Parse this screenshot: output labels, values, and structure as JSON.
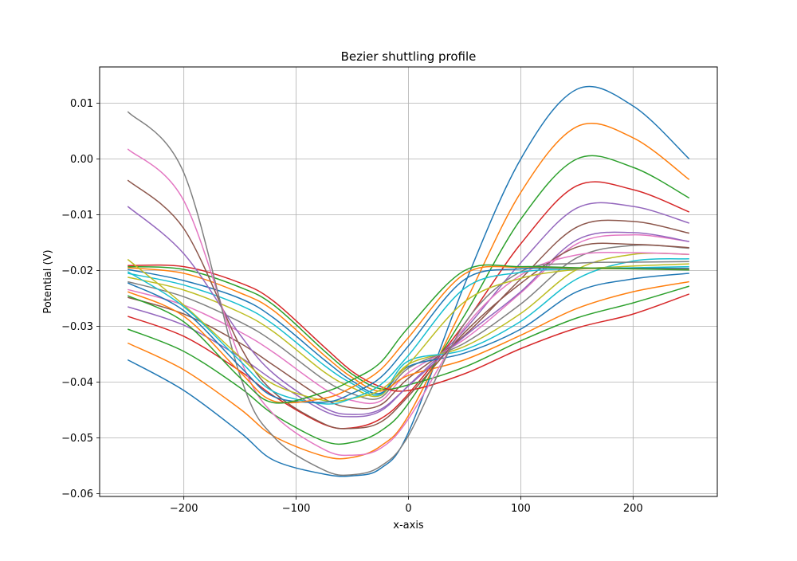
{
  "chart_data": {
    "type": "line",
    "title": "Bezier shuttling profile",
    "xlabel": "x-axis",
    "ylabel": "Potential (V)",
    "xlim": [
      -275,
      275
    ],
    "ylim": [
      -0.0605,
      0.0165
    ],
    "xticks": [
      -200,
      -100,
      0,
      100,
      200
    ],
    "xtick_labels": [
      "−200",
      "−100",
      "0",
      "100",
      "200"
    ],
    "yticks": [
      -0.06,
      -0.05,
      -0.04,
      -0.03,
      -0.02,
      -0.01,
      0.0,
      0.01
    ],
    "ytick_labels": [
      "−0.06",
      "−0.05",
      "−0.04",
      "−0.03",
      "−0.02",
      "−0.01",
      "0.00",
      "0.01"
    ],
    "grid": true,
    "legend": "none",
    "colors": [
      "#1f77b4",
      "#ff7f0e",
      "#2ca02c",
      "#d62728",
      "#9467bd",
      "#8c564b",
      "#e377c2",
      "#7f7f7f",
      "#bcbd22",
      "#17becf"
    ],
    "series": [
      {
        "x": [
          -250,
          -200,
          -150,
          -120,
          -75,
          -50,
          -25,
          0,
          50,
          100,
          150,
          200,
          250
        ],
        "y": [
          -0.036,
          -0.0415,
          -0.049,
          -0.054,
          -0.0565,
          -0.0568,
          -0.0555,
          -0.049,
          -0.0225,
          0.0,
          0.0125,
          0.0095,
          0.0
        ]
      },
      {
        "x": [
          -250,
          -200,
          -150,
          -120,
          -75,
          -50,
          -25,
          0,
          50,
          100,
          150,
          200,
          250
        ],
        "y": [
          -0.033,
          -0.0378,
          -0.0448,
          -0.0497,
          -0.0533,
          -0.0535,
          -0.0515,
          -0.046,
          -0.026,
          -0.006,
          0.0058,
          0.0038,
          -0.0037
        ]
      },
      {
        "x": [
          -250,
          -200,
          -150,
          -120,
          -75,
          -50,
          -25,
          0,
          50,
          100,
          150,
          200,
          250
        ],
        "y": [
          -0.0305,
          -0.0345,
          -0.041,
          -0.0458,
          -0.0506,
          -0.0508,
          -0.0488,
          -0.0438,
          -0.028,
          -0.0108,
          0.0,
          -0.0015,
          -0.007
        ]
      },
      {
        "x": [
          -250,
          -200,
          -150,
          -120,
          -75,
          -50,
          -25,
          0,
          50,
          100,
          150,
          200,
          250
        ],
        "y": [
          -0.0282,
          -0.0318,
          -0.038,
          -0.0425,
          -0.0476,
          -0.0482,
          -0.0466,
          -0.0421,
          -0.0295,
          -0.0152,
          -0.0048,
          -0.0055,
          -0.0095
        ]
      },
      {
        "x": [
          -250,
          -200,
          -150,
          -120,
          -75,
          -50,
          -25,
          0,
          50,
          100,
          150,
          200,
          250
        ],
        "y": [
          -0.0265,
          -0.0298,
          -0.0355,
          -0.0397,
          -0.0452,
          -0.0462,
          -0.0452,
          -0.0406,
          -0.0306,
          -0.0186,
          -0.0088,
          -0.0085,
          -0.0115
        ]
      },
      {
        "x": [
          -250,
          -200,
          -150,
          -120,
          -75,
          -50,
          -25,
          0,
          50,
          100,
          150,
          200,
          250
        ],
        "y": [
          -0.0248,
          -0.0278,
          -0.033,
          -0.037,
          -0.043,
          -0.0446,
          -0.0441,
          -0.0393,
          -0.0316,
          -0.0215,
          -0.0122,
          -0.0112,
          -0.0133
        ]
      },
      {
        "x": [
          -250,
          -200,
          -150,
          -120,
          -75,
          -50,
          -25,
          0,
          50,
          100,
          150,
          200,
          250
        ],
        "y": [
          -0.0234,
          -0.0262,
          -0.031,
          -0.0347,
          -0.0412,
          -0.0433,
          -0.0434,
          -0.0383,
          -0.0323,
          -0.024,
          -0.0152,
          -0.0136,
          -0.0148
        ]
      },
      {
        "x": [
          -250,
          -200,
          -150,
          -120,
          -75,
          -50,
          -25,
          0,
          50,
          100,
          150,
          200,
          250
        ],
        "y": [
          -0.022,
          -0.0247,
          -0.0292,
          -0.0328,
          -0.0396,
          -0.0421,
          -0.0428,
          -0.0375,
          -0.033,
          -0.026,
          -0.0177,
          -0.0155,
          -0.016
        ]
      },
      {
        "x": [
          -250,
          -200,
          -150,
          -120,
          -75,
          -50,
          -25,
          0,
          50,
          100,
          150,
          200,
          250
        ],
        "y": [
          -0.0212,
          -0.0235,
          -0.0275,
          -0.031,
          -0.0382,
          -0.041,
          -0.0424,
          -0.0368,
          -0.0336,
          -0.0277,
          -0.0198,
          -0.0171,
          -0.0171
        ]
      },
      {
        "x": [
          -250,
          -200,
          -150,
          -120,
          -75,
          -50,
          -25,
          0,
          50,
          100,
          150,
          200,
          250
        ],
        "y": [
          -0.0205,
          -0.0226,
          -0.0262,
          -0.0297,
          -0.037,
          -0.0403,
          -0.0422,
          -0.0362,
          -0.0342,
          -0.0291,
          -0.0215,
          -0.0183,
          -0.0179
        ]
      },
      {
        "x": [
          -250,
          -200,
          -150,
          -120,
          -75,
          -50,
          -25,
          0,
          50,
          100,
          150,
          200,
          250
        ],
        "y": [
          -0.0198,
          -0.0218,
          -0.025,
          -0.0285,
          -0.036,
          -0.0398,
          -0.042,
          -0.0372,
          -0.0348,
          -0.0305,
          -0.0238,
          -0.0215,
          -0.0205
        ]
      },
      {
        "x": [
          -250,
          -200,
          -150,
          -120,
          -75,
          -50,
          -25,
          0,
          50,
          100,
          150,
          200,
          250
        ],
        "y": [
          -0.0195,
          -0.0205,
          -0.024,
          -0.0272,
          -0.0352,
          -0.0392,
          -0.0416,
          -0.0388,
          -0.036,
          -0.0316,
          -0.0268,
          -0.0238,
          -0.022
        ]
      },
      {
        "x": [
          -250,
          -200,
          -150,
          -120,
          -75,
          -50,
          -25,
          0,
          50,
          100,
          150,
          200,
          250
        ],
        "y": [
          -0.0193,
          -0.0198,
          -0.023,
          -0.0262,
          -0.0344,
          -0.0386,
          -0.0412,
          -0.0405,
          -0.0373,
          -0.0326,
          -0.0285,
          -0.0258,
          -0.0228
        ]
      },
      {
        "x": [
          -250,
          -200,
          -150,
          -120,
          -75,
          -50,
          -25,
          0,
          50,
          100,
          150,
          200,
          250
        ],
        "y": [
          -0.0191,
          -0.0193,
          -0.0222,
          -0.0255,
          -0.0337,
          -0.0381,
          -0.0408,
          -0.0415,
          -0.0385,
          -0.034,
          -0.0303,
          -0.0278,
          -0.0242
        ]
      },
      {
        "x": [
          -250,
          -200,
          -150,
          -120,
          -75,
          -50,
          -25,
          0,
          50,
          100,
          150,
          200,
          250
        ],
        "y": [
          -0.0085,
          -0.017,
          -0.0315,
          -0.0385,
          -0.0446,
          -0.0458,
          -0.0449,
          -0.0407,
          -0.0318,
          -0.0238,
          -0.0145,
          -0.0132,
          -0.0148
        ]
      },
      {
        "x": [
          -250,
          -200,
          -150,
          -120,
          -75,
          -50,
          -25,
          0,
          50,
          100,
          150,
          200,
          250
        ],
        "y": [
          -0.0038,
          -0.0125,
          -0.0335,
          -0.0418,
          -0.0475,
          -0.0483,
          -0.0472,
          -0.0425,
          -0.0311,
          -0.0223,
          -0.0158,
          -0.0153,
          -0.0159
        ]
      },
      {
        "x": [
          -250,
          -200,
          -150,
          -120,
          -75,
          -50,
          -25,
          0,
          50,
          100,
          150,
          200,
          250
        ],
        "y": [
          0.0018,
          -0.0075,
          -0.0358,
          -0.0458,
          -0.0521,
          -0.0531,
          -0.0519,
          -0.0466,
          -0.0302,
          -0.0208,
          -0.0172,
          -0.0168,
          -0.0171
        ]
      },
      {
        "x": [
          -250,
          -200,
          -150,
          -120,
          -75,
          -50,
          -25,
          0,
          50,
          100,
          150,
          200,
          250
        ],
        "y": [
          0.0085,
          -0.0025,
          -0.0388,
          -0.0498,
          -0.0558,
          -0.0566,
          -0.0551,
          -0.0496,
          -0.0295,
          -0.0202,
          -0.0187,
          -0.0185,
          -0.0184
        ]
      },
      {
        "x": [
          -250,
          -200,
          -150,
          -120,
          -75,
          -50,
          -25,
          0,
          50,
          100,
          150,
          200,
          250
        ],
        "y": [
          -0.018,
          -0.0262,
          -0.0355,
          -0.0404,
          -0.0433,
          -0.0429,
          -0.0414,
          -0.0368,
          -0.0256,
          -0.0214,
          -0.0198,
          -0.0192,
          -0.0188
        ]
      },
      {
        "x": [
          -250,
          -200,
          -150,
          -120,
          -75,
          -50,
          -25,
          0,
          50,
          100,
          150,
          200,
          250
        ],
        "y": [
          -0.0202,
          -0.0265,
          -0.0362,
          -0.0417,
          -0.0439,
          -0.0429,
          -0.0405,
          -0.0352,
          -0.0232,
          -0.0203,
          -0.0197,
          -0.0195,
          -0.0193
        ]
      },
      {
        "x": [
          -250,
          -200,
          -150,
          -120,
          -75,
          -50,
          -25,
          0,
          50,
          100,
          150,
          200,
          250
        ],
        "y": [
          -0.0222,
          -0.0272,
          -0.0372,
          -0.0426,
          -0.0436,
          -0.042,
          -0.0392,
          -0.0335,
          -0.0216,
          -0.0197,
          -0.0196,
          -0.0196,
          -0.0196
        ]
      },
      {
        "x": [
          -250,
          -200,
          -150,
          -120,
          -75,
          -50,
          -25,
          0,
          50,
          100,
          150,
          200,
          250
        ],
        "y": [
          -0.0238,
          -0.0282,
          -0.0382,
          -0.0434,
          -0.0429,
          -0.0409,
          -0.0378,
          -0.032,
          -0.0206,
          -0.0194,
          -0.0196,
          -0.0197,
          -0.0198
        ]
      },
      {
        "x": [
          -250,
          -200,
          -150,
          -120,
          -75,
          -50,
          -25,
          0,
          50,
          100,
          150,
          200,
          250
        ],
        "y": [
          -0.0245,
          -0.0292,
          -0.0392,
          -0.0437,
          -0.0418,
          -0.0396,
          -0.0365,
          -0.0302,
          -0.02,
          -0.0193,
          -0.0195,
          -0.0197,
          -0.0199
        ]
      }
    ]
  }
}
